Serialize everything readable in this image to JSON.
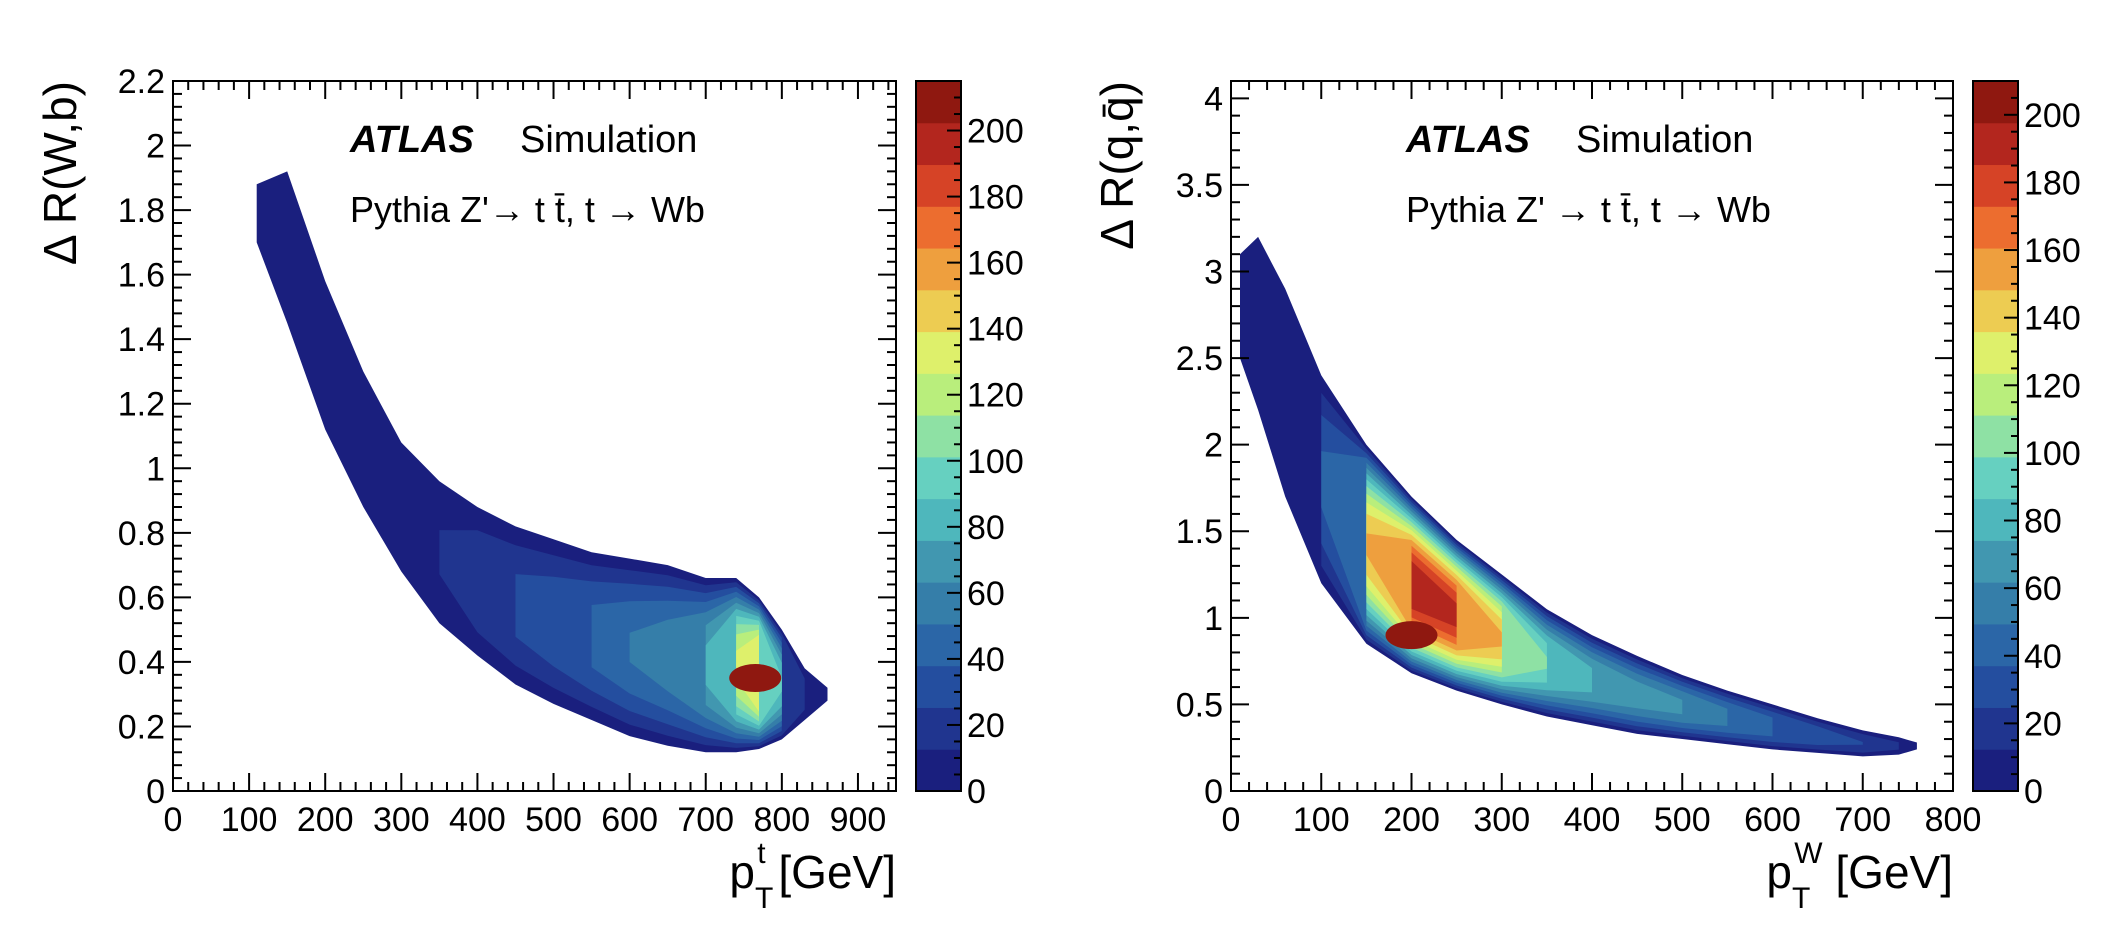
{
  "chart_data": [
    {
      "type": "heatmap",
      "experiment_label": "ATLAS",
      "status_label": "Simulation",
      "process_text": "Pythia Z'→ t t̄, t → Wb",
      "xlabel": "p_T^t [GeV]",
      "xlabel_main": "p",
      "xlabel_sup": "t",
      "xlabel_sub": "T",
      "xlabel_unit": " [GeV]",
      "ylabel": "Δ R(W,b)",
      "xlim": [
        0,
        950
      ],
      "ylim": [
        0,
        2.2
      ],
      "x_ticks": [
        0,
        100,
        200,
        300,
        400,
        500,
        600,
        700,
        800,
        900
      ],
      "y_ticks": [
        0,
        0.2,
        0.4,
        0.6,
        0.8,
        1,
        1.2,
        1.4,
        1.6,
        1.8,
        2,
        2.2
      ],
      "z_range": [
        0,
        215
      ],
      "z_ticks": [
        0,
        20,
        40,
        60,
        80,
        100,
        120,
        140,
        160,
        180,
        200
      ],
      "band": [
        {
          "x": 110,
          "lo": 1.7,
          "hi": 1.88,
          "w": 0.5
        },
        {
          "x": 150,
          "lo": 1.45,
          "hi": 1.92,
          "w": 1
        },
        {
          "x": 200,
          "lo": 1.12,
          "hi": 1.58,
          "w": 3
        },
        {
          "x": 250,
          "lo": 0.88,
          "hi": 1.3,
          "w": 6
        },
        {
          "x": 300,
          "lo": 0.68,
          "hi": 1.08,
          "w": 10
        },
        {
          "x": 350,
          "lo": 0.52,
          "hi": 0.96,
          "w": 14
        },
        {
          "x": 400,
          "lo": 0.42,
          "hi": 0.88,
          "w": 24
        },
        {
          "x": 450,
          "lo": 0.33,
          "hi": 0.82,
          "w": 30
        },
        {
          "x": 500,
          "lo": 0.27,
          "hi": 0.78,
          "w": 36
        },
        {
          "x": 550,
          "lo": 0.22,
          "hi": 0.74,
          "w": 44
        },
        {
          "x": 600,
          "lo": 0.17,
          "hi": 0.72,
          "w": 52
        },
        {
          "x": 650,
          "lo": 0.14,
          "hi": 0.7,
          "w": 60
        },
        {
          "x": 700,
          "lo": 0.12,
          "hi": 0.66,
          "w": 80
        },
        {
          "x": 740,
          "lo": 0.12,
          "hi": 0.66,
          "w": 130
        },
        {
          "x": 770,
          "lo": 0.13,
          "hi": 0.6,
          "w": 170
        },
        {
          "x": 800,
          "lo": 0.16,
          "hi": 0.5,
          "w": 90
        },
        {
          "x": 830,
          "lo": 0.22,
          "hi": 0.38,
          "w": 20
        },
        {
          "x": 860,
          "lo": 0.28,
          "hi": 0.32,
          "w": 2
        }
      ],
      "peak": {
        "x": 765,
        "y": 0.35,
        "value": 215
      }
    },
    {
      "type": "heatmap",
      "experiment_label": "ATLAS",
      "status_label": "Simulation",
      "process_text": "Pythia Z' → t t̄, t → Wb",
      "xlabel": "p_T^W [GeV]",
      "xlabel_main": "p",
      "xlabel_sup": "W",
      "xlabel_sub": "T",
      "xlabel_unit": " [GeV]",
      "ylabel": "Δ R(q,q̄)",
      "xlim": [
        0,
        800
      ],
      "ylim": [
        0,
        4.1
      ],
      "x_ticks": [
        0,
        100,
        200,
        300,
        400,
        500,
        600,
        700,
        800
      ],
      "y_ticks": [
        0,
        0.5,
        1,
        1.5,
        2,
        2.5,
        3,
        3.5,
        4
      ],
      "y_tick_labels": [
        "0",
        "0.5",
        "1",
        "1.5",
        "2",
        "2.5",
        "3",
        "3.5",
        "4"
      ],
      "z_range": [
        0,
        210
      ],
      "z_ticks": [
        0,
        20,
        40,
        60,
        80,
        100,
        120,
        140,
        160,
        180,
        200
      ],
      "band": [
        {
          "x": 10,
          "lo": 2.5,
          "hi": 3.1,
          "w": 0.5
        },
        {
          "x": 30,
          "lo": 2.2,
          "hi": 3.2,
          "w": 2
        },
        {
          "x": 60,
          "lo": 1.7,
          "hi": 2.9,
          "w": 10
        },
        {
          "x": 100,
          "lo": 1.2,
          "hi": 2.4,
          "w": 40
        },
        {
          "x": 150,
          "lo": 0.85,
          "hi": 2.0,
          "w": 150
        },
        {
          "x": 200,
          "lo": 0.68,
          "hi": 1.7,
          "w": 200
        },
        {
          "x": 250,
          "lo": 0.58,
          "hi": 1.45,
          "w": 190
        },
        {
          "x": 300,
          "lo": 0.5,
          "hi": 1.25,
          "w": 150
        },
        {
          "x": 350,
          "lo": 0.43,
          "hi": 1.05,
          "w": 100
        },
        {
          "x": 400,
          "lo": 0.38,
          "hi": 0.9,
          "w": 80
        },
        {
          "x": 450,
          "lo": 0.33,
          "hi": 0.78,
          "w": 70
        },
        {
          "x": 500,
          "lo": 0.3,
          "hi": 0.67,
          "w": 65
        },
        {
          "x": 550,
          "lo": 0.27,
          "hi": 0.58,
          "w": 55
        },
        {
          "x": 600,
          "lo": 0.24,
          "hi": 0.5,
          "w": 45
        },
        {
          "x": 650,
          "lo": 0.22,
          "hi": 0.42,
          "w": 35
        },
        {
          "x": 700,
          "lo": 0.2,
          "hi": 0.35,
          "w": 25
        },
        {
          "x": 740,
          "lo": 0.21,
          "hi": 0.31,
          "w": 15
        },
        {
          "x": 760,
          "lo": 0.24,
          "hi": 0.28,
          "w": 2
        }
      ],
      "peak": {
        "x": 200,
        "y": 0.9,
        "value": 210
      }
    }
  ],
  "palette": [
    "#1a1f7e",
    "#20358f",
    "#244e9f",
    "#2b66a7",
    "#357ea9",
    "#4197b0",
    "#4eb7bc",
    "#66d0c0",
    "#8ee1a4",
    "#b9ee7c",
    "#def06b",
    "#edcc52",
    "#ee9f3e",
    "#ec6d2f",
    "#d64326",
    "#b3261e",
    "#8f1810"
  ]
}
